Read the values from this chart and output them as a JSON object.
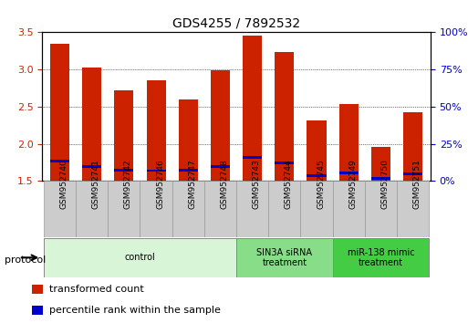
{
  "title": "GDS4255 / 7892532",
  "samples": [
    "GSM952740",
    "GSM952741",
    "GSM952742",
    "GSM952746",
    "GSM952747",
    "GSM952748",
    "GSM952743",
    "GSM952744",
    "GSM952745",
    "GSM952749",
    "GSM952750",
    "GSM952751"
  ],
  "red_values": [
    3.35,
    3.02,
    2.72,
    2.86,
    2.6,
    2.99,
    3.46,
    3.24,
    2.31,
    2.54,
    1.96,
    2.42
  ],
  "blue_values": [
    1.75,
    1.68,
    1.63,
    1.62,
    1.63,
    1.68,
    1.8,
    1.72,
    1.55,
    1.59,
    1.52,
    1.58
  ],
  "ylim": [
    1.5,
    3.5
  ],
  "yticks_left": [
    1.5,
    2.0,
    2.5,
    3.0,
    3.5
  ],
  "yticks_right": [
    0,
    25,
    50,
    75,
    100
  ],
  "bar_width": 0.6,
  "red_color": "#cc2200",
  "blue_color": "#0000cc",
  "groups": [
    {
      "label": "control",
      "start": 0,
      "end": 6,
      "color": "#d8f5d8"
    },
    {
      "label": "SIN3A siRNA\ntreatment",
      "start": 6,
      "end": 9,
      "color": "#88dd88"
    },
    {
      "label": "miR-138 mimic\ntreatment",
      "start": 9,
      "end": 12,
      "color": "#44cc44"
    }
  ],
  "protocol_label": "protocol",
  "legend_items": [
    {
      "label": "transformed count",
      "color": "#cc2200"
    },
    {
      "label": "percentile rank within the sample",
      "color": "#0000cc"
    }
  ],
  "background_color": "#ffffff",
  "tick_label_color_left": "#cc2200",
  "tick_label_color_right": "#0000cc",
  "xticklabel_bg": "#cccccc",
  "xticklabel_fontsize": 6.5,
  "title_fontsize": 10
}
